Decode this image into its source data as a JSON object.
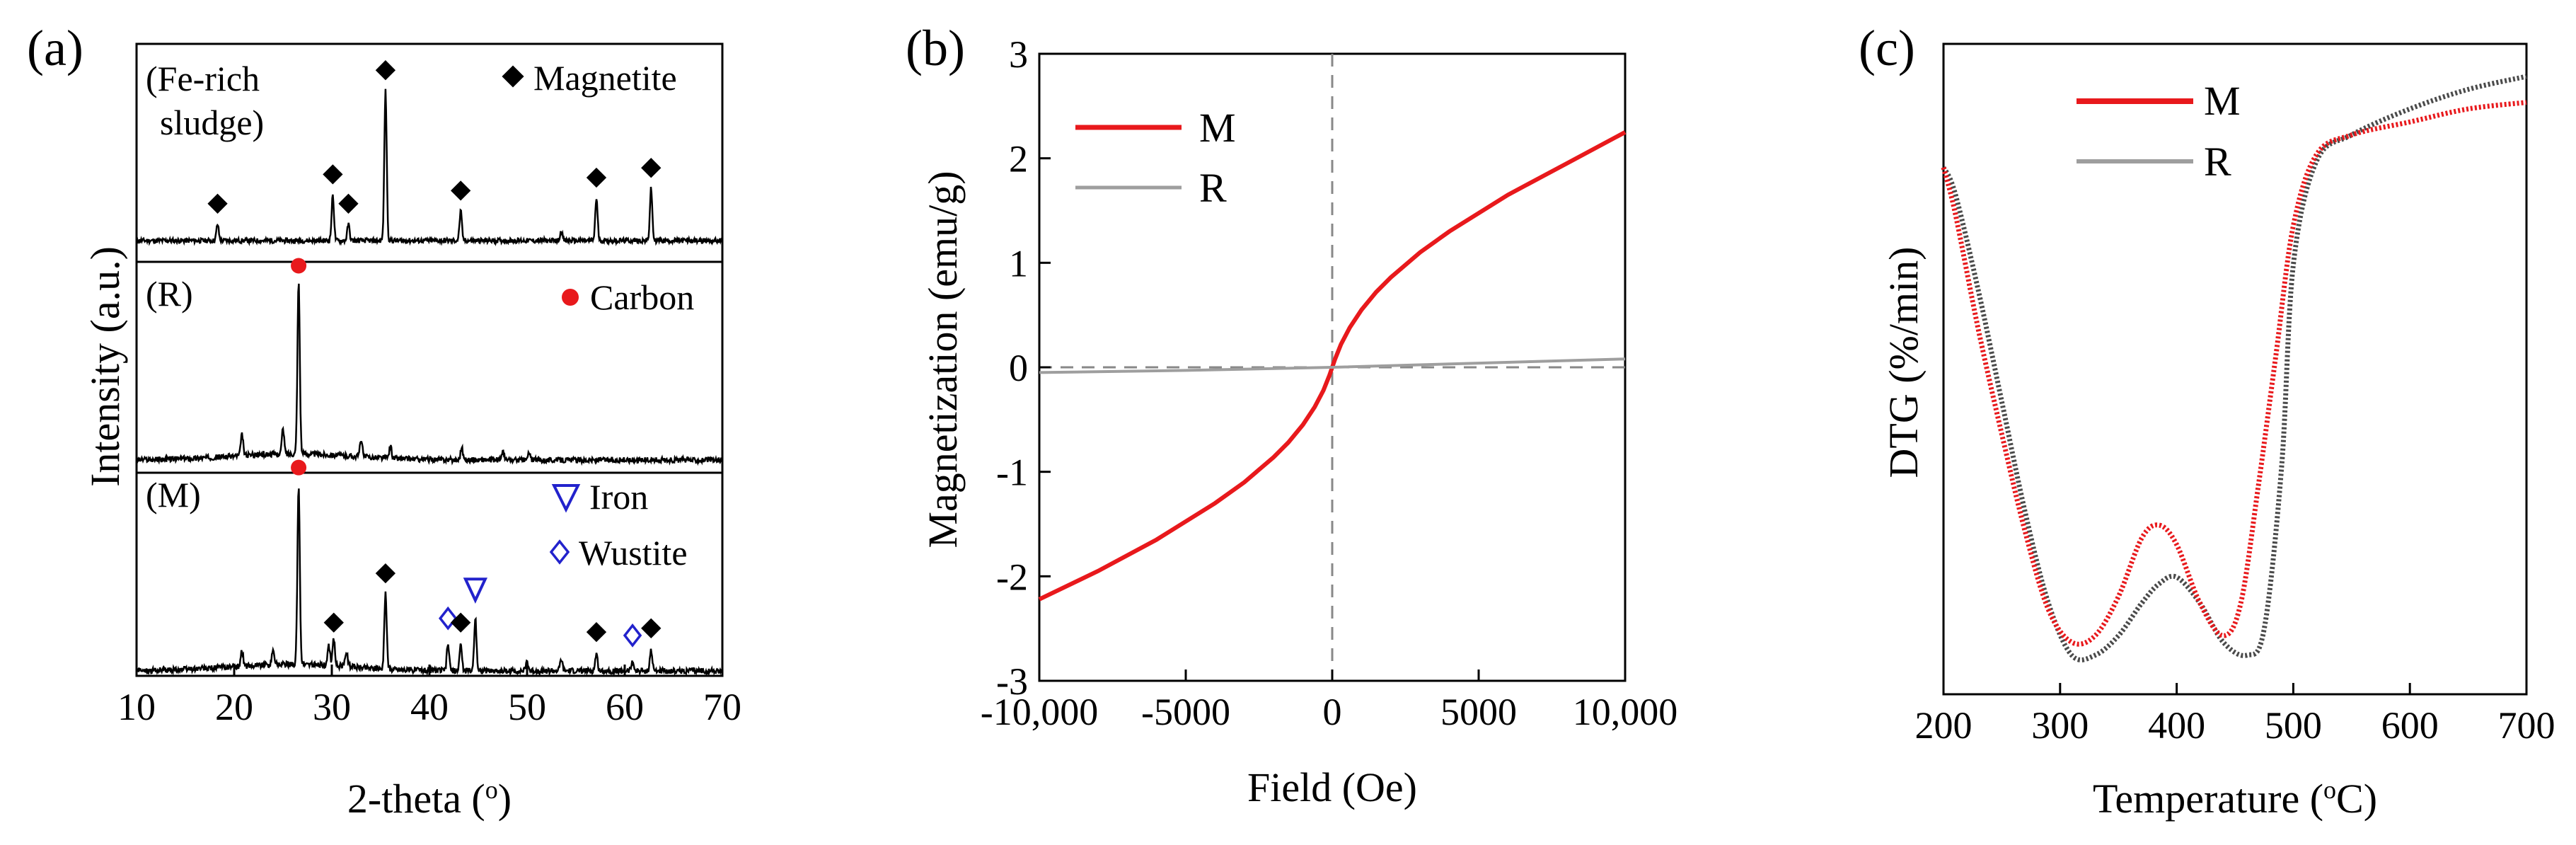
{
  "chart_data": [
    {
      "id": "a",
      "panel_label": "(a)",
      "type": "line",
      "title": "",
      "xlabel": "2-theta (",
      "xlabel_superscript": "o",
      "xlabel_suffix": ")",
      "ylabel": "Intensity (a.u.)",
      "xlim": [
        10,
        70
      ],
      "xticks": [
        10,
        20,
        30,
        40,
        50,
        60,
        70
      ],
      "legend": [
        {
          "symbol": "filled-diamond",
          "label": "Magnetite"
        },
        {
          "symbol": "red-dot",
          "label": "Carbon"
        },
        {
          "symbol": "triangle-down",
          "label": "Iron"
        },
        {
          "symbol": "open-diamond",
          "label": "Wustite"
        }
      ],
      "subplots": [
        {
          "name": "(Fe-rich sludge)",
          "label_lines": [
            "(Fe-rich",
            "sludge)"
          ],
          "peaks": [
            {
              "x": 18.3,
              "h": 0.1,
              "phase": "magnetite"
            },
            {
              "x": 30.1,
              "h": 0.28,
              "phase": "magnetite"
            },
            {
              "x": 31.7,
              "h": 0.1,
              "phase": "magnetite"
            },
            {
              "x": 35.5,
              "h": 0.92,
              "phase": "magnetite"
            },
            {
              "x": 43.2,
              "h": 0.18,
              "phase": "magnetite"
            },
            {
              "x": 53.5,
              "h": 0.06,
              "phase": ""
            },
            {
              "x": 57.1,
              "h": 0.26,
              "phase": "magnetite"
            },
            {
              "x": 62.7,
              "h": 0.32,
              "phase": "magnetite"
            }
          ]
        },
        {
          "name": "(R)",
          "label_lines": [
            "(R)"
          ],
          "peaks": [
            {
              "x": 20.8,
              "h": 0.12,
              "phase": ""
            },
            {
              "x": 25.0,
              "h": 0.14,
              "phase": ""
            },
            {
              "x": 26.6,
              "h": 0.97,
              "phase": "carbon"
            },
            {
              "x": 33.0,
              "h": 0.1,
              "phase": ""
            },
            {
              "x": 36.0,
              "h": 0.07,
              "phase": ""
            },
            {
              "x": 43.3,
              "h": 0.07,
              "phase": ""
            },
            {
              "x": 47.5,
              "h": 0.05,
              "phase": ""
            },
            {
              "x": 50.2,
              "h": 0.04,
              "phase": ""
            }
          ]
        },
        {
          "name": "(M)",
          "label_lines": [
            "(M)"
          ],
          "peaks": [
            {
              "x": 20.8,
              "h": 0.08,
              "phase": ""
            },
            {
              "x": 24.0,
              "h": 0.08,
              "phase": ""
            },
            {
              "x": 26.6,
              "h": 0.95,
              "phase": "carbon"
            },
            {
              "x": 29.7,
              "h": 0.1,
              "phase": ""
            },
            {
              "x": 30.2,
              "h": 0.14,
              "phase": "magnetite"
            },
            {
              "x": 31.5,
              "h": 0.08,
              "phase": ""
            },
            {
              "x": 35.5,
              "h": 0.4,
              "phase": "magnetite"
            },
            {
              "x": 41.9,
              "h": 0.14,
              "phase": "wustite"
            },
            {
              "x": 43.2,
              "h": 0.14,
              "phase": "magnetite"
            },
            {
              "x": 44.7,
              "h": 0.28,
              "phase": "iron"
            },
            {
              "x": 50.0,
              "h": 0.05,
              "phase": ""
            },
            {
              "x": 53.5,
              "h": 0.06,
              "phase": ""
            },
            {
              "x": 57.1,
              "h": 0.09,
              "phase": "magnetite"
            },
            {
              "x": 60.8,
              "h": 0.05,
              "phase": "wustite"
            },
            {
              "x": 62.7,
              "h": 0.11,
              "phase": "magnetite"
            }
          ]
        }
      ]
    },
    {
      "id": "b",
      "panel_label": "(b)",
      "type": "line",
      "title": "",
      "xlabel": "Field (Oe)",
      "ylabel": "Magnetization (emu/g)",
      "xlim": [
        -10000,
        10000
      ],
      "ylim": [
        -3,
        3
      ],
      "xticks": [
        -10000,
        -5000,
        0,
        5000,
        10000
      ],
      "xtick_labels": [
        "-10,000",
        "-5000",
        "0",
        "5000",
        "10,000"
      ],
      "yticks": [
        -3,
        -2,
        -1,
        0,
        1,
        2,
        3
      ],
      "legend_position": "top-left",
      "series": [
        {
          "name": "M",
          "color": "#e8191c",
          "x": [
            -10000,
            -8000,
            -6000,
            -4000,
            -3000,
            -2000,
            -1500,
            -1000,
            -600,
            -300,
            -100,
            0,
            100,
            300,
            600,
            1000,
            1500,
            2000,
            3000,
            4000,
            6000,
            8000,
            10000
          ],
          "y": [
            -2.22,
            -1.95,
            -1.65,
            -1.3,
            -1.1,
            -0.86,
            -0.72,
            -0.55,
            -0.38,
            -0.22,
            -0.08,
            0.0,
            0.08,
            0.22,
            0.38,
            0.55,
            0.72,
            0.86,
            1.1,
            1.3,
            1.65,
            1.95,
            2.25
          ]
        },
        {
          "name": "R",
          "color": "#9e9e9e",
          "x": [
            -10000,
            -5000,
            0,
            5000,
            10000
          ],
          "y": [
            -0.05,
            -0.03,
            0.0,
            0.04,
            0.08
          ]
        }
      ]
    },
    {
      "id": "c",
      "panel_label": "(c)",
      "type": "line",
      "title": "",
      "xlabel": "Temperature (",
      "xlabel_superscript": "o",
      "xlabel_suffix": "C)",
      "ylabel": "DTG (%/min)",
      "xlim": [
        200,
        700
      ],
      "ylim": [
        0,
        1
      ],
      "y_ticks_labeled": false,
      "xticks": [
        200,
        300,
        400,
        500,
        600,
        700
      ],
      "legend_position": "top-center",
      "series": [
        {
          "name": "M",
          "color": "#e8191c",
          "x": [
            200,
            210,
            230,
            250,
            270,
            290,
            310,
            330,
            350,
            370,
            385,
            400,
            420,
            440,
            455,
            470,
            485,
            500,
            520,
            550,
            600,
            650,
            700
          ],
          "y": [
            0.81,
            0.74,
            0.56,
            0.4,
            0.25,
            0.13,
            0.08,
            0.09,
            0.15,
            0.24,
            0.26,
            0.23,
            0.14,
            0.09,
            0.14,
            0.32,
            0.52,
            0.72,
            0.83,
            0.86,
            0.88,
            0.9,
            0.91
          ]
        },
        {
          "name": "R",
          "color": "#4a4a4a",
          "x": [
            200,
            210,
            230,
            250,
            270,
            290,
            310,
            330,
            350,
            370,
            385,
            400,
            420,
            440,
            460,
            475,
            490,
            500,
            520,
            550,
            600,
            650,
            700
          ],
          "y": [
            0.81,
            0.77,
            0.62,
            0.45,
            0.28,
            0.14,
            0.06,
            0.06,
            0.09,
            0.14,
            0.17,
            0.18,
            0.14,
            0.08,
            0.06,
            0.1,
            0.35,
            0.66,
            0.82,
            0.86,
            0.9,
            0.93,
            0.95
          ]
        }
      ]
    }
  ]
}
